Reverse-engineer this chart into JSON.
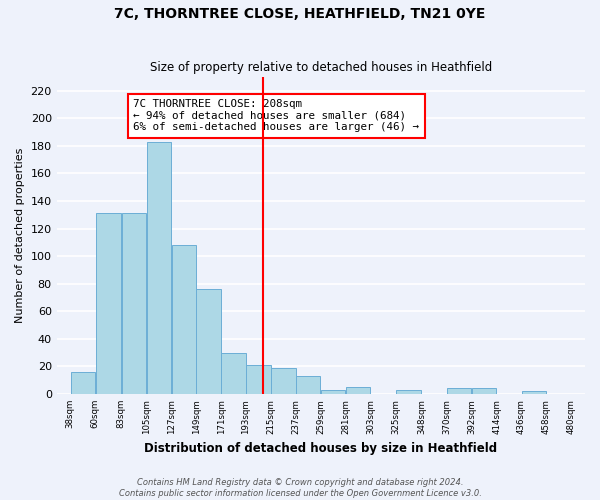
{
  "title": "7C, THORNTREE CLOSE, HEATHFIELD, TN21 0YE",
  "subtitle": "Size of property relative to detached houses in Heathfield",
  "xlabel": "Distribution of detached houses by size in Heathfield",
  "ylabel": "Number of detached properties",
  "bar_edges": [
    38,
    60,
    83,
    105,
    127,
    149,
    171,
    193,
    215,
    237,
    259,
    281,
    303,
    325,
    348,
    370,
    392,
    414,
    436,
    458,
    480
  ],
  "bar_heights": [
    16,
    131,
    131,
    183,
    108,
    76,
    30,
    21,
    19,
    13,
    3,
    5,
    0,
    3,
    0,
    4,
    4,
    0,
    2,
    0
  ],
  "bar_color": "#add8e6",
  "bar_edgecolor": "#6baed6",
  "vline_x": 208,
  "vline_color": "red",
  "annotation_line1": "7C THORNTREE CLOSE: 208sqm",
  "annotation_line2": "← 94% of detached houses are smaller (684)",
  "annotation_line3": "6% of semi-detached houses are larger (46) →",
  "ylim": [
    0,
    230
  ],
  "yticks": [
    0,
    20,
    40,
    60,
    80,
    100,
    120,
    140,
    160,
    180,
    200,
    220
  ],
  "tick_labels": [
    "38sqm",
    "60sqm",
    "83sqm",
    "105sqm",
    "127sqm",
    "149sqm",
    "171sqm",
    "193sqm",
    "215sqm",
    "237sqm",
    "259sqm",
    "281sqm",
    "303sqm",
    "325sqm",
    "348sqm",
    "370sqm",
    "392sqm",
    "414sqm",
    "436sqm",
    "458sqm",
    "480sqm"
  ],
  "footer_text": "Contains HM Land Registry data © Crown copyright and database right 2024.\nContains public sector information licensed under the Open Government Licence v3.0.",
  "bg_color": "#eef2fb",
  "grid_color": "#ffffff"
}
